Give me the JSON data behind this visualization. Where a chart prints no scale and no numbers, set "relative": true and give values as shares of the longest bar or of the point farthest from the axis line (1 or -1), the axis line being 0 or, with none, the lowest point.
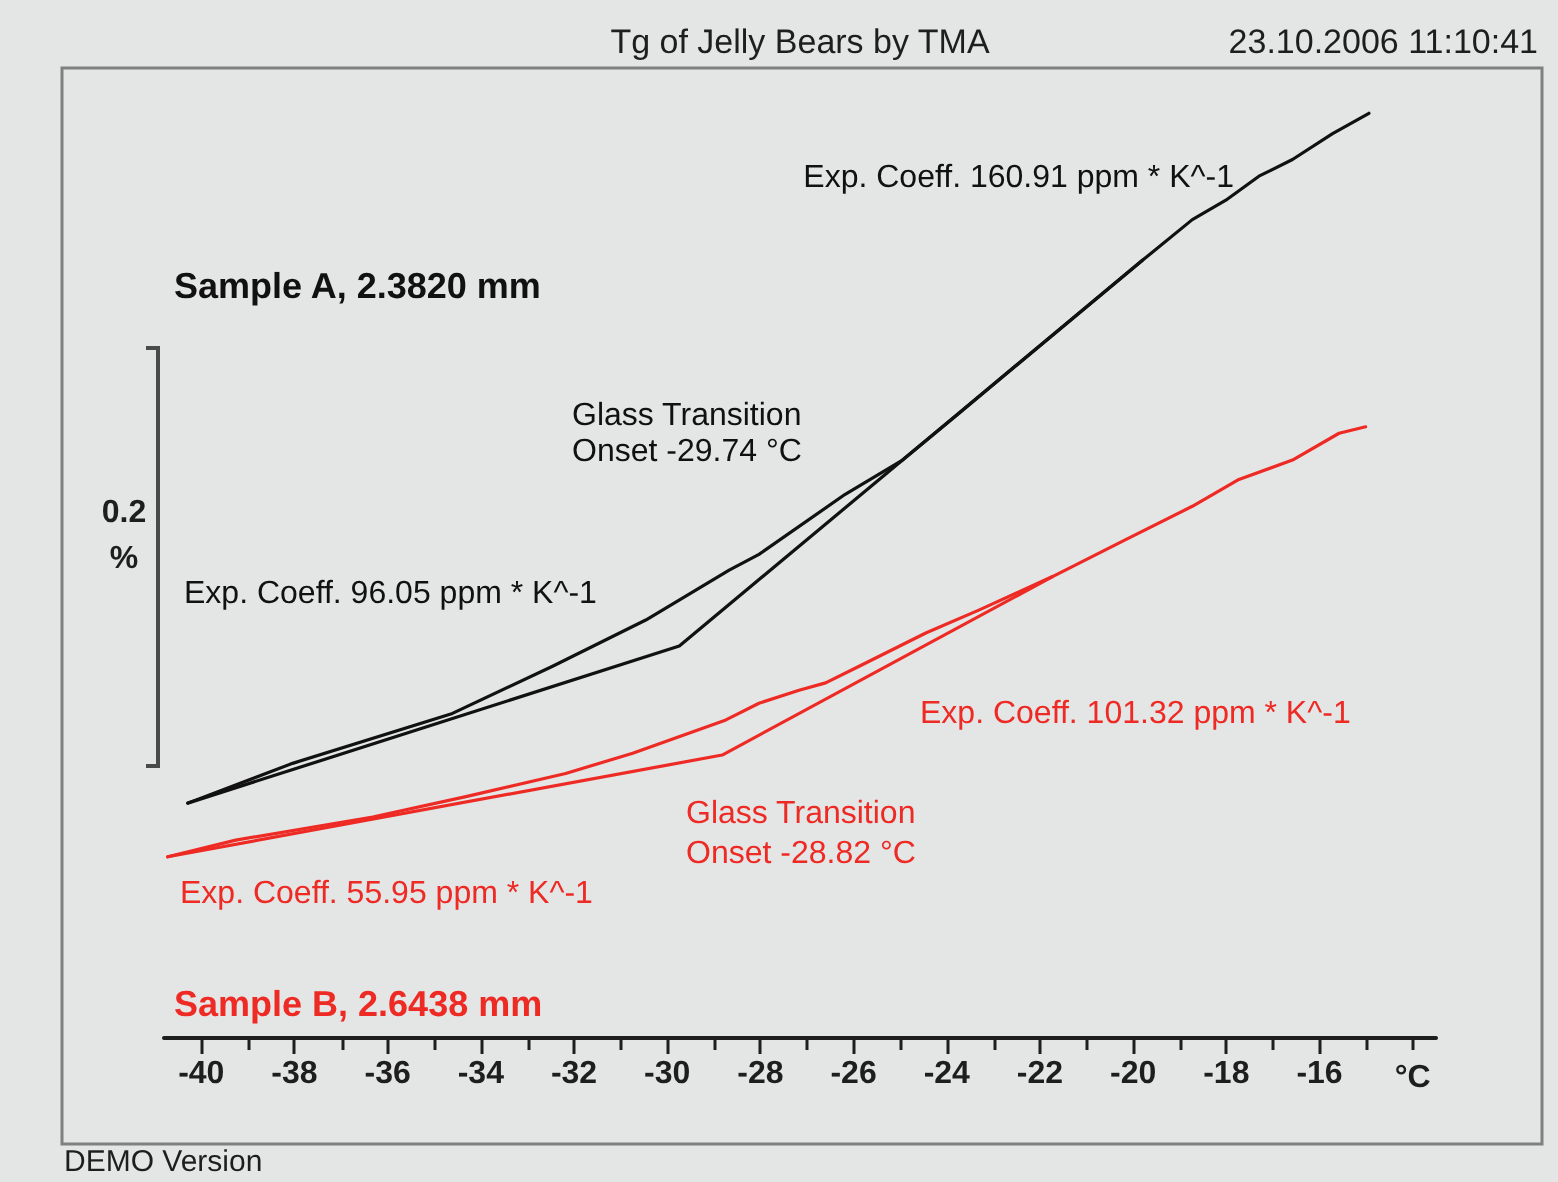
{
  "chart_data": {
    "type": "line",
    "title": "Tg of Jelly Bears by TMA",
    "xlabel": "°C",
    "relative": true,
    "marker": "none",
    "xlim": [
      -40.8,
      -13.5
    ],
    "xticks": [
      -40,
      {
        "value": -39,
        "label": null
      },
      -38,
      {
        "value": -37,
        "label": null
      },
      -36,
      {
        "value": -35,
        "label": null
      },
      -34,
      {
        "value": -33,
        "label": null
      },
      -32,
      {
        "value": -31,
        "label": null
      },
      -30,
      {
        "value": -29,
        "label": null
      },
      -28,
      {
        "value": -27,
        "label": null
      },
      -26,
      {
        "value": -25,
        "label": null
      },
      -24,
      {
        "value": -23,
        "label": null
      },
      -22,
      {
        "value": -21,
        "label": null
      },
      -20,
      {
        "value": -19,
        "label": null
      },
      -18,
      {
        "value": -17,
        "label": null
      },
      -16,
      {
        "value": -15,
        "label": null
      },
      {
        "value": -14,
        "label": null
      }
    ],
    "series": [
      {
        "name": "Sample A, 2.3820 mm",
        "color": "#111111",
        "x": [
          -40.29,
          -38.04,
          -34.61,
          -32.46,
          -30.46,
          -28.67,
          -28.03,
          -26.18,
          -24.95,
          -23.73,
          -21.59,
          -19.8,
          -18.73,
          -18.01,
          -17.3,
          -16.58,
          -15.72,
          -14.94
        ],
        "values": [
          0.254,
          0.297,
          0.351,
          0.402,
          0.452,
          0.506,
          0.523,
          0.588,
          0.625,
          0.676,
          0.766,
          0.841,
          0.885,
          0.906,
          0.932,
          0.95,
          0.978,
          1
        ]
      },
      {
        "name": "Sample B, 2.6438 mm",
        "color": "#ee2a24",
        "x": [
          -40.72,
          -39.26,
          -36.32,
          -34.32,
          -32.18,
          -30.74,
          -28.74,
          -28.03,
          -27.17,
          -26.6,
          -25.88,
          -24.45,
          -23.3,
          -21.73,
          -20.16,
          -18.73,
          -17.73,
          -16.58,
          -15.58,
          -15.01
        ],
        "values": [
          0.196,
          0.214,
          0.239,
          0.261,
          0.286,
          0.308,
          0.344,
          0.362,
          0.376,
          0.384,
          0.402,
          0.438,
          0.463,
          0.499,
          0.539,
          0.575,
          0.604,
          0.625,
          0.654,
          0.661
        ]
      },
      {
        "color": "#111111",
        "x": [
          -40.29,
          -29.74,
          -19.8
        ],
        "values": [
          0.254,
          0.424,
          0.841
        ]
      },
      {
        "color": "#ee2a24",
        "x": [
          -40.72,
          -28.82,
          -21.73
        ],
        "values": [
          0.196,
          0.306,
          0.499
        ]
      }
    ],
    "annotations": [
      "23.10.2006 11:10:41",
      "Exp. Coeff. 160.91 ppm * K^-1",
      "0.2\n%",
      "Glass Transition\nOnset -29.74 °C",
      "Exp. Coeff. 96.05 ppm * K^-1",
      "Exp. Coeff. 101.32 ppm * K^-1",
      "Glass Transition\nOnset -28.82 °C",
      "Exp. Coeff. 55.95 ppm * K^-1",
      "DEMO Version"
    ]
  }
}
